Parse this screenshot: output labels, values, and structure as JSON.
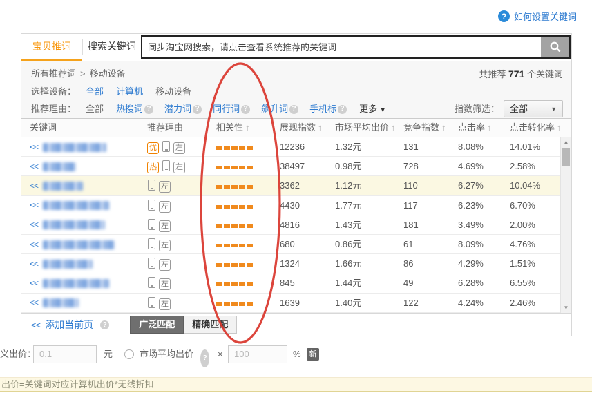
{
  "help": {
    "label": "如何设置关键词"
  },
  "tabs": {
    "tab1": "宝贝推词",
    "tab2": "搜索关键词"
  },
  "search": {
    "placeholder": "同步淘宝网搜索，请点击查看系统推荐的关键词"
  },
  "breadcrumb": {
    "root": "所有推荐词",
    "separator": ">",
    "current": "移动设备"
  },
  "summary": {
    "prefix": "共推荐",
    "count": "771",
    "suffix": "个关键词"
  },
  "device_filter": {
    "label": "选择设备：",
    "options": [
      {
        "label": "全部",
        "selected": false
      },
      {
        "label": "计算机",
        "selected": false
      },
      {
        "label": "移动设备",
        "selected": true
      }
    ]
  },
  "reason_filter": {
    "label": "推荐理由：",
    "all": "全部",
    "options": [
      {
        "label": "热搜词",
        "help": true
      },
      {
        "label": "潜力词",
        "help": true
      },
      {
        "label": "同行词",
        "help": true
      },
      {
        "label": "飙升词",
        "help": true
      },
      {
        "label": "手机标",
        "help": true
      }
    ],
    "more": "更多"
  },
  "index_filter": {
    "label": "指数筛选：",
    "value": "全部"
  },
  "table": {
    "row_chevron": "<<",
    "headers": [
      {
        "label": "关键词",
        "sortable": false
      },
      {
        "label": "推荐理由",
        "sortable": false
      },
      {
        "label": "相关性",
        "sortable": true
      },
      {
        "label": "展现指数",
        "sortable": true
      },
      {
        "label": "市场平均出价",
        "sortable": true
      },
      {
        "label": "竞争指数",
        "sortable": true
      },
      {
        "label": "点击率",
        "sortable": true
      },
      {
        "label": "点击转化率",
        "sortable": true
      }
    ],
    "rows": [
      {
        "blur_width": 92,
        "badges": [
          "优",
          "phone",
          "左"
        ],
        "relevance": 5,
        "impression_index": "12236",
        "market_avg_price": "1.32元",
        "competition_index": "131",
        "ctr": "8.08%",
        "cvr": "14.01%",
        "highlight": false
      },
      {
        "blur_width": 48,
        "badges": [
          "热",
          "phone",
          "左"
        ],
        "relevance": 5,
        "impression_index": "38497",
        "market_avg_price": "0.98元",
        "competition_index": "728",
        "ctr": "4.69%",
        "cvr": "2.58%",
        "highlight": false
      },
      {
        "blur_width": 58,
        "badges": [
          "phone",
          "左"
        ],
        "relevance": 5,
        "impression_index": "3362",
        "market_avg_price": "1.12元",
        "competition_index": "110",
        "ctr": "6.27%",
        "cvr": "10.04%",
        "highlight": true
      },
      {
        "blur_width": 96,
        "badges": [
          "phone",
          "左"
        ],
        "relevance": 5,
        "impression_index": "4430",
        "market_avg_price": "1.77元",
        "competition_index": "117",
        "ctr": "6.23%",
        "cvr": "6.70%",
        "highlight": false
      },
      {
        "blur_width": 90,
        "badges": [
          "phone",
          "左"
        ],
        "relevance": 5,
        "impression_index": "4816",
        "market_avg_price": "1.43元",
        "competition_index": "181",
        "ctr": "3.49%",
        "cvr": "2.00%",
        "highlight": false
      },
      {
        "blur_width": 104,
        "badges": [
          "phone",
          "左"
        ],
        "relevance": 5,
        "impression_index": "680",
        "market_avg_price": "0.86元",
        "competition_index": "61",
        "ctr": "8.09%",
        "cvr": "4.76%",
        "highlight": false
      },
      {
        "blur_width": 72,
        "badges": [
          "phone",
          "左"
        ],
        "relevance": 5,
        "impression_index": "1324",
        "market_avg_price": "1.66元",
        "competition_index": "86",
        "ctr": "4.29%",
        "cvr": "1.51%",
        "highlight": false
      },
      {
        "blur_width": 96,
        "badges": [
          "phone",
          "左"
        ],
        "relevance": 5,
        "impression_index": "845",
        "market_avg_price": "1.44元",
        "competition_index": "49",
        "ctr": "6.28%",
        "cvr": "6.55%",
        "highlight": false
      },
      {
        "blur_width": 52,
        "badges": [
          "phone",
          "左"
        ],
        "relevance": 5,
        "impression_index": "1639",
        "market_avg_price": "1.40元",
        "competition_index": "122",
        "ctr": "4.24%",
        "cvr": "2.46%",
        "highlight": false
      }
    ]
  },
  "table_footer": {
    "chevron": "<<",
    "add_current_page": "添加当前页",
    "broad_match": "广泛匹配",
    "exact_match": "精确匹配"
  },
  "bid": {
    "label": "义出价：",
    "price_value": "0.1",
    "currency": "元",
    "market_avg_label": "市场平均出价",
    "multiply": "×",
    "percent_value": "100",
    "percent_sign": "%",
    "new_badge": "新"
  },
  "notice": {
    "text": "出价=关键词对应计算机出价*无线折扣"
  },
  "colors": {
    "accent_orange": "#f89406",
    "link_blue": "#2e7bd0",
    "relevance_bar": "#f08a1d",
    "highlight_row": "#fbf8e2",
    "red_annotation": "#d9352b"
  }
}
